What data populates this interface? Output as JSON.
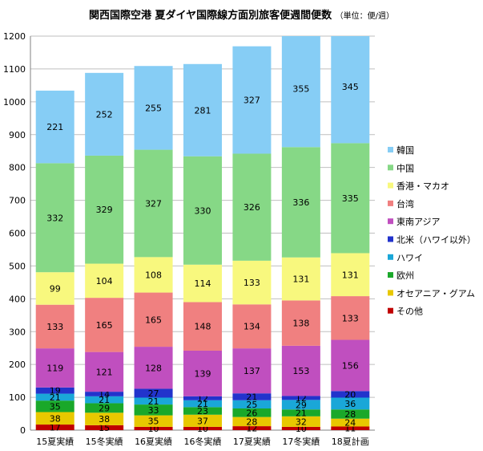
{
  "chart_data": {
    "type": "bar",
    "stacked": true,
    "title": "関西国際空港 夏ダイヤ国際線方面別旅客便週間便数",
    "unit_note": "（単位：便/週）",
    "categories": [
      "15夏実績",
      "15冬実績",
      "16夏実績",
      "16冬実績",
      "17夏実績",
      "17冬実績",
      "18夏計画"
    ],
    "ylim": [
      0,
      1200
    ],
    "yticks": [
      0,
      100,
      200,
      300,
      400,
      500,
      600,
      700,
      800,
      900,
      1000,
      1100,
      1200
    ],
    "grid": true,
    "legend_position": "right",
    "series": [
      {
        "name": "その他",
        "color": "#c00000",
        "values": [
          17,
          15,
          10,
          10,
          12,
          10,
          11
        ]
      },
      {
        "name": "オセアニア・グアム",
        "color": "#e8c800",
        "values": [
          38,
          38,
          35,
          37,
          28,
          32,
          24
        ]
      },
      {
        "name": "欧州",
        "color": "#1aa82a",
        "values": [
          35,
          29,
          33,
          23,
          26,
          21,
          28
        ]
      },
      {
        "name": "ハワイ",
        "color": "#1aa7d8",
        "values": [
          21,
          21,
          21,
          21,
          25,
          29,
          36
        ]
      },
      {
        "name": "北米（ハワイ以外）",
        "color": "#2233cc",
        "values": [
          19,
          14,
          27,
          12,
          21,
          12,
          20
        ]
      },
      {
        "name": "東南アジア",
        "color": "#c04fbf",
        "values": [
          119,
          121,
          128,
          139,
          137,
          153,
          156
        ]
      },
      {
        "name": "台湾",
        "color": "#f08080",
        "values": [
          133,
          165,
          165,
          148,
          134,
          138,
          133
        ]
      },
      {
        "name": "香港・マカオ",
        "color": "#f8f87e",
        "values": [
          99,
          104,
          108,
          114,
          133,
          131,
          131
        ]
      },
      {
        "name": "中国",
        "color": "#86d886",
        "values": [
          332,
          329,
          327,
          330,
          326,
          336,
          335
        ]
      },
      {
        "name": "韓国",
        "color": "#86cdf5",
        "values": [
          221,
          252,
          255,
          281,
          327,
          355,
          345
        ]
      }
    ],
    "legend_order": [
      "韓国",
      "中国",
      "香港・マカオ",
      "台湾",
      "東南アジア",
      "北米（ハワイ以外）",
      "ハワイ",
      "欧州",
      "オセアニア・グアム",
      "その他"
    ]
  }
}
